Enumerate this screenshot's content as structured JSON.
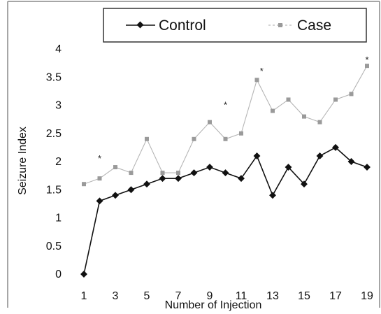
{
  "chart_data": {
    "type": "line",
    "xlabel": "Number of Injection",
    "ylabel": "Seizure Index",
    "x": [
      1,
      2,
      3,
      4,
      5,
      6,
      7,
      8,
      9,
      10,
      11,
      12,
      13,
      14,
      15,
      16,
      17,
      18,
      19
    ],
    "x_tick_labels": [
      "1",
      "3",
      "5",
      "7",
      "9",
      "11",
      "13",
      "15",
      "17",
      "19"
    ],
    "x_ticks": [
      1,
      3,
      5,
      7,
      9,
      11,
      13,
      15,
      17,
      19
    ],
    "y_tick_labels": [
      "0",
      "0.5",
      "1",
      "1.5",
      "2",
      "2.5",
      "3",
      "3.5",
      "4"
    ],
    "y_ticks": [
      0,
      0.5,
      1,
      1.5,
      2,
      2.5,
      3,
      3.5,
      4
    ],
    "ylim": [
      0,
      4
    ],
    "xlim": [
      1,
      19
    ],
    "grid": false,
    "legend_position": "top",
    "series": [
      {
        "name": "Control",
        "color": "#111111",
        "marker": "diamond",
        "values": [
          0,
          1.3,
          1.4,
          1.5,
          1.6,
          1.7,
          1.7,
          1.8,
          1.9,
          1.8,
          1.7,
          2.1,
          1.4,
          1.9,
          1.6,
          2.1,
          2.25,
          2.0,
          1.9
        ]
      },
      {
        "name": "Case",
        "color": "#9a9a9a",
        "marker": "square",
        "values": [
          1.6,
          1.7,
          1.9,
          1.8,
          2.4,
          1.8,
          1.8,
          2.4,
          2.7,
          2.4,
          2.5,
          3.45,
          2.9,
          3.1,
          2.8,
          2.7,
          3.1,
          3.2,
          3.7
        ]
      }
    ],
    "annotations": [
      {
        "text": "*",
        "x": 2,
        "y": 2.1
      },
      {
        "text": "*",
        "x": 10,
        "y": 3.05
      },
      {
        "text": "*",
        "x": 12.3,
        "y": 3.65
      },
      {
        "text": "*",
        "x": 19,
        "y": 3.85
      }
    ]
  }
}
